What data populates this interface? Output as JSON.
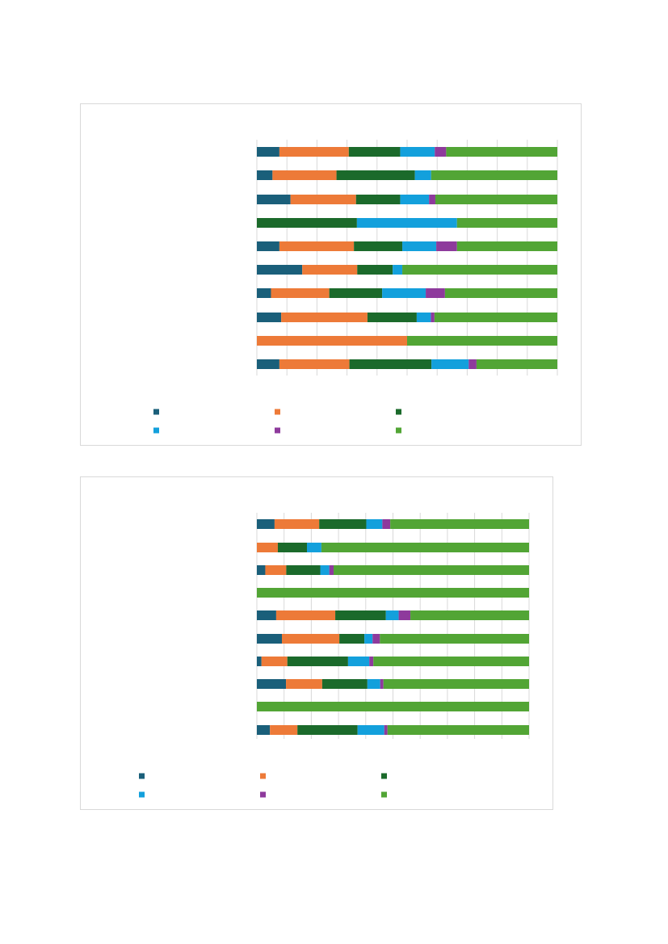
{
  "chart_data": [
    {
      "type": "bar",
      "orientation": "horizontal",
      "stacked": "percent",
      "xlim": [
        0,
        100
      ],
      "grid": true,
      "legend_position": "bottom",
      "series": [
        {
          "color": "#1a5f7a",
          "values": [
            7.5,
            5.2,
            11.2,
            0,
            7.5,
            15.1,
            4.7,
            8.1,
            0,
            7.5
          ]
        },
        {
          "color": "#ed7a38",
          "values": [
            23.1,
            21.3,
            21.8,
            0,
            24.8,
            18.3,
            19.4,
            28.7,
            50,
            23.3
          ]
        },
        {
          "color": "#1b6a2b",
          "values": [
            17.1,
            26.1,
            14.7,
            33.3,
            16.1,
            11.8,
            17.6,
            16.4,
            0,
            27.3
          ]
        },
        {
          "color": "#13a0dc",
          "values": [
            11.5,
            5.4,
            9.6,
            33.3,
            11.3,
            3.2,
            14.5,
            4.7,
            0,
            12.4
          ]
        },
        {
          "color": "#8e3a9c",
          "values": [
            3.8,
            0,
            2.1,
            0,
            6.9,
            0,
            6.4,
            1.2,
            0,
            2.6
          ]
        },
        {
          "color": "#52a535",
          "values": [
            37,
            42,
            40.6,
            33.4,
            33.4,
            51.6,
            37.4,
            40.9,
            50,
            26.9
          ]
        }
      ]
    },
    {
      "type": "bar",
      "orientation": "horizontal",
      "stacked": "percent",
      "xlim": [
        0,
        100
      ],
      "grid": true,
      "legend_position": "bottom",
      "series": [
        {
          "color": "#1a5f7a",
          "values": [
            6.5,
            0,
            3.1,
            0,
            7.1,
            9.2,
            1.7,
            10.7,
            0,
            4.8
          ]
        },
        {
          "color": "#ed7a38",
          "values": [
            16.4,
            7.7,
            7.7,
            0,
            21.7,
            21.1,
            9.5,
            13.3,
            0,
            10.1
          ]
        },
        {
          "color": "#1b6a2b",
          "values": [
            17.3,
            10.7,
            12.5,
            0,
            18.6,
            9.2,
            22.3,
            16.6,
            0,
            22.1
          ]
        },
        {
          "color": "#13a0dc",
          "values": [
            5.9,
            5.3,
            3.3,
            0,
            4.7,
            3,
            7.8,
            4.7,
            0,
            9.8
          ]
        },
        {
          "color": "#8e3a9c",
          "values": [
            2.9,
            0,
            1.6,
            0,
            4.3,
            2.7,
            1.5,
            1.2,
            0,
            1.2
          ]
        },
        {
          "color": "#52a535",
          "values": [
            51,
            76.3,
            71.8,
            100,
            43.6,
            54.8,
            57.2,
            53.5,
            100,
            52
          ]
        }
      ]
    }
  ]
}
